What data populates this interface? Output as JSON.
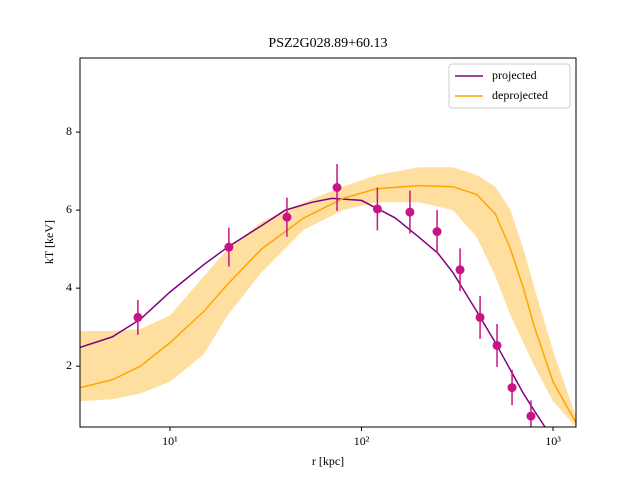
{
  "chart_data": {
    "type": "line",
    "title": "PSZ2G028.89+60.13",
    "xlabel": "r [kpc]",
    "ylabel": "kT [keV]",
    "xscale": "log",
    "xlim": [
      3.39,
      1318
    ],
    "ylim": [
      0.44,
      9.9
    ],
    "xticks": [
      {
        "value": 10,
        "label": "10¹"
      },
      {
        "value": 100,
        "label": "10²"
      },
      {
        "value": 1000,
        "label": "10³"
      }
    ],
    "yticks": [
      2,
      4,
      6,
      8
    ],
    "legend": "upper right",
    "series": [
      {
        "name": "projected",
        "color": "#800080",
        "x": [
          3.39,
          5,
          7,
          10,
          15,
          20,
          30,
          40,
          55,
          70,
          100,
          150,
          200,
          250,
          300,
          400,
          500,
          600,
          700,
          800,
          908
        ],
        "values": [
          2.48,
          2.75,
          3.2,
          3.9,
          4.6,
          5.05,
          5.6,
          6.0,
          6.2,
          6.3,
          6.25,
          5.8,
          5.3,
          4.9,
          4.4,
          3.4,
          2.6,
          1.9,
          1.3,
          0.85,
          0.44
        ]
      },
      {
        "name": "deprojected",
        "color": "#ffa500",
        "band_color": "#ffdfa0",
        "x": [
          3.39,
          5,
          7,
          10,
          15,
          20,
          30,
          50,
          80,
          120,
          200,
          300,
          400,
          500,
          600,
          700,
          800,
          1000,
          1318
        ],
        "values": [
          1.45,
          1.65,
          2.0,
          2.6,
          3.4,
          4.1,
          5.0,
          5.8,
          6.3,
          6.55,
          6.63,
          6.6,
          6.4,
          5.9,
          5.0,
          4.0,
          3.0,
          1.6,
          0.55
        ],
        "band_lower": [
          1.1,
          1.15,
          1.3,
          1.6,
          2.3,
          3.3,
          4.4,
          5.5,
          6.0,
          6.2,
          6.2,
          6.0,
          5.3,
          4.3,
          3.3,
          2.6,
          2.0,
          1.1,
          0.44
        ],
        "band_upper": [
          2.9,
          2.9,
          2.95,
          3.3,
          4.3,
          5.0,
          5.7,
          6.2,
          6.6,
          6.9,
          7.1,
          7.1,
          6.9,
          6.6,
          6.0,
          5.0,
          4.0,
          2.4,
          0.7
        ]
      }
    ],
    "points": {
      "color": "#c71585",
      "x": [
        6.8,
        20.3,
        40.8,
        74.5,
        121,
        179,
        248,
        327,
        416,
        510,
        611,
        767
      ],
      "values": [
        3.25,
        5.05,
        5.82,
        6.58,
        6.03,
        5.95,
        5.45,
        4.47,
        3.25,
        2.53,
        1.45,
        0.72
      ],
      "errors": [
        0.45,
        0.5,
        0.5,
        0.6,
        0.55,
        0.55,
        0.55,
        0.55,
        0.55,
        0.55,
        0.45,
        0.4
      ]
    }
  }
}
